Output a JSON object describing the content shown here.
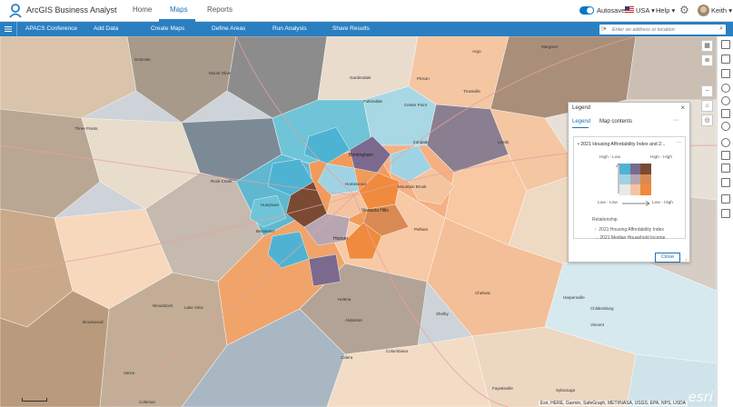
{
  "app": {
    "title": "ArcGIS Business Analyst"
  },
  "nav": {
    "tabs": [
      {
        "label": "Home",
        "active": false
      },
      {
        "label": "Maps",
        "active": true
      },
      {
        "label": "Reports",
        "active": false
      }
    ]
  },
  "header_right": {
    "autosave_label": "Autosave",
    "country_label": "USA",
    "help_label": "Help",
    "user_name": "Keith"
  },
  "toolbar": {
    "project_name": "APACS Conference",
    "items": [
      "Add Data",
      "Create Maps",
      "Define Areas",
      "Run Analysis",
      "Share Results"
    ]
  },
  "search": {
    "placeholder": "Enter an address or location"
  },
  "legend": {
    "title": "Legend",
    "tabs": [
      {
        "label": "Legend",
        "active": true
      },
      {
        "label": "Map contents",
        "active": false
      }
    ],
    "layer_name": "2021 Housing Affordability Index and 2...",
    "high_low": "High - Low",
    "high_high": "High - High",
    "low_low": "Low - Low",
    "low_high": "Low - High",
    "relationship_title": "Relationship",
    "relationship_y": "2021 Housing Affordability Index",
    "relationship_x": "2021 Median Household Income",
    "close_label": "Close",
    "bivariate_colors": [
      [
        "#4eb3d3",
        "#7b6a8e",
        "#7a4a32"
      ],
      [
        "#9fd3e3",
        "#b7a6b2",
        "#d98a52"
      ],
      [
        "#e8e8e8",
        "#f4c4a0",
        "#f08a3c"
      ]
    ]
  },
  "map": {
    "places": [
      {
        "name": "Dolomite",
        "type": "town"
      },
      {
        "name": "Three Points",
        "type": "town"
      },
      {
        "name": "Mount Olive",
        "type": "town"
      },
      {
        "name": "Gardendale",
        "type": "town"
      },
      {
        "name": "Fultondale",
        "type": "town"
      },
      {
        "name": "Trussville",
        "type": "town"
      },
      {
        "name": "Margaret",
        "type": "town"
      },
      {
        "name": "Argo",
        "type": "town"
      },
      {
        "name": "Center Point",
        "type": "town"
      },
      {
        "name": "Pinson",
        "type": "town"
      },
      {
        "name": "Birmingham",
        "type": "city"
      },
      {
        "name": "Irondale",
        "type": "town"
      },
      {
        "name": "Leeds",
        "type": "town"
      },
      {
        "name": "Rock Creek",
        "type": "town"
      },
      {
        "name": "Homewood",
        "type": "town"
      },
      {
        "name": "Vestavia Hills",
        "type": "city"
      },
      {
        "name": "Mountain Brook",
        "type": "town"
      },
      {
        "name": "Hoover",
        "type": "city"
      },
      {
        "name": "Bessemer",
        "type": "town"
      },
      {
        "name": "Hueytown",
        "type": "town"
      },
      {
        "name": "Pelham",
        "type": "town"
      },
      {
        "name": "Helena",
        "type": "town"
      },
      {
        "name": "Alabaster",
        "type": "town"
      },
      {
        "name": "Chelsea",
        "type": "town"
      },
      {
        "name": "Vincent",
        "type": "town"
      },
      {
        "name": "Columbiana",
        "type": "town"
      },
      {
        "name": "Lake View",
        "type": "town"
      },
      {
        "name": "Woodstock",
        "type": "town"
      },
      {
        "name": "Brookwood",
        "type": "town"
      },
      {
        "name": "Vance",
        "type": "town"
      },
      {
        "name": "Calera",
        "type": "town"
      },
      {
        "name": "Harpersville",
        "type": "town"
      },
      {
        "name": "Childersburg",
        "type": "town"
      },
      {
        "name": "Sylacauga",
        "type": "town"
      },
      {
        "name": "Fayetteville",
        "type": "town"
      },
      {
        "name": "Shelby",
        "type": "town"
      },
      {
        "name": "Coleman",
        "type": "town"
      }
    ],
    "attribution": "Esri, HERE, Garmin, SafeGraph, METI/NASA, USGS, EPA, NPS, USDA",
    "logo_text": "esri"
  }
}
